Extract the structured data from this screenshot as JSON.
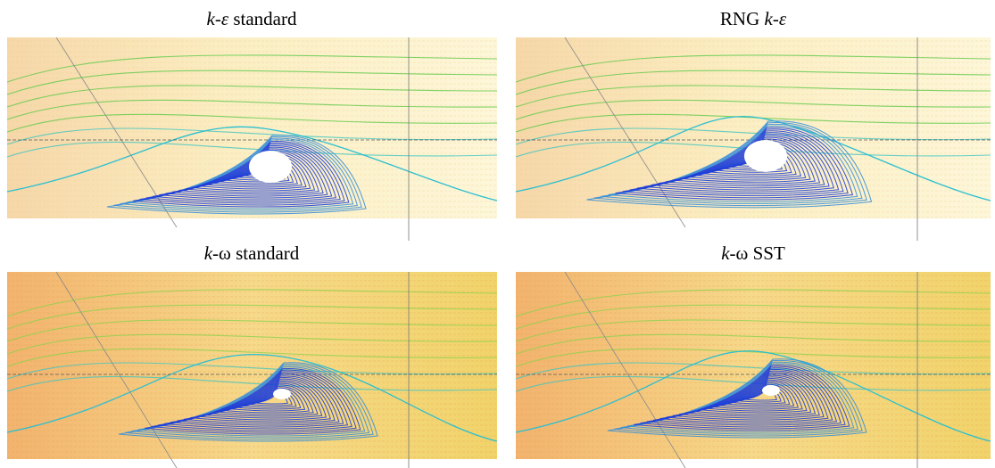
{
  "panels": [
    {
      "title": [
        {
          "text": "k-ε",
          "italic": true
        },
        {
          "text": " standard",
          "italic": false
        }
      ]
    },
    {
      "title": [
        {
          "text": "RNG ",
          "italic": false
        },
        {
          "text": "k-ε",
          "italic": true
        }
      ]
    },
    {
      "title": [
        {
          "text": "k-",
          "italic": true
        },
        {
          "text": "ω standard",
          "italic": false
        }
      ]
    },
    {
      "title": [
        {
          "text": "k-",
          "italic": true
        },
        {
          "text": "ω SST",
          "italic": false
        }
      ]
    }
  ]
}
